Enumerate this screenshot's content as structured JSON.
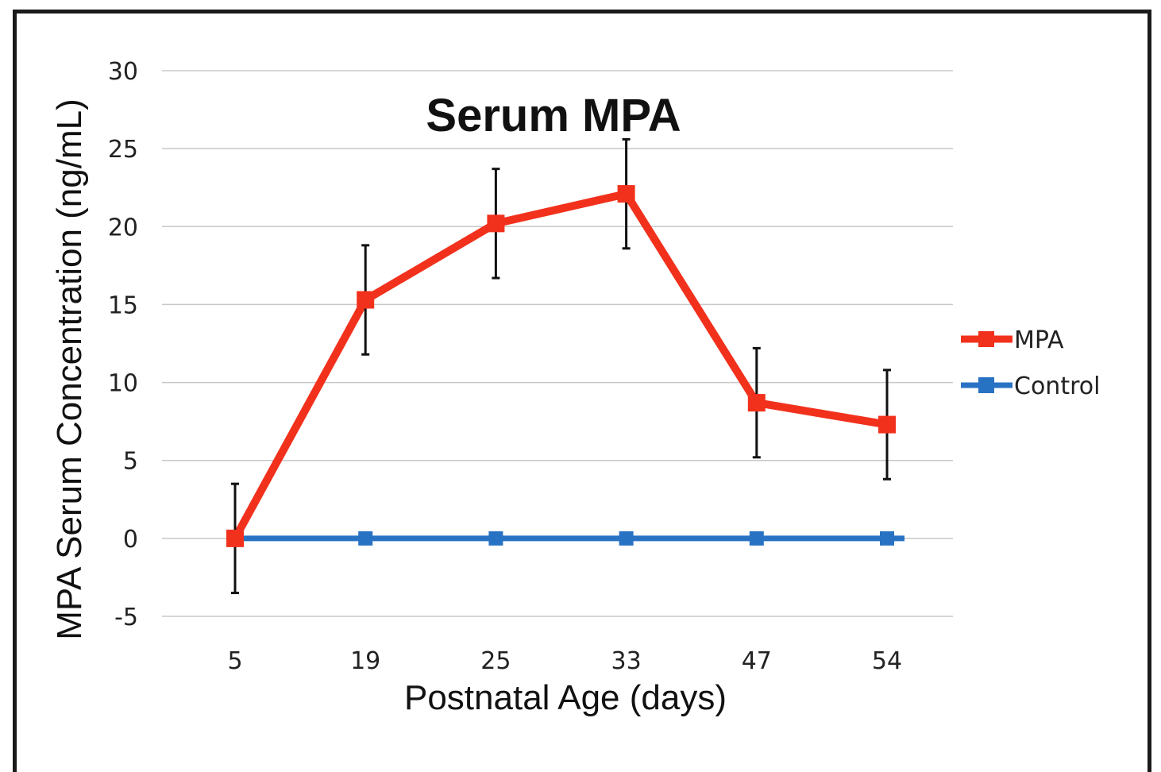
{
  "chart_data": {
    "type": "line",
    "title": "Serum MPA",
    "xlabel": "Postnatal Age (days)",
    "ylabel": "MPA Serum Concentration (ng/mL)",
    "categories": [
      "5",
      "19",
      "25",
      "33",
      "47",
      "54"
    ],
    "ylim": [
      -5,
      30
    ],
    "yticks": [
      -5,
      0,
      5,
      10,
      15,
      20,
      25,
      30
    ],
    "grid": true,
    "legend_position": "right",
    "series": [
      {
        "name": "MPA",
        "color": "#f2311d",
        "values": [
          0,
          15.3,
          20.2,
          22.1,
          8.7,
          7.3
        ],
        "error": [
          3.5,
          3.5,
          3.5,
          3.5,
          3.5,
          3.5
        ]
      },
      {
        "name": "Control",
        "color": "#2872c4",
        "values": [
          0,
          0,
          0,
          0,
          0,
          0
        ]
      }
    ]
  }
}
